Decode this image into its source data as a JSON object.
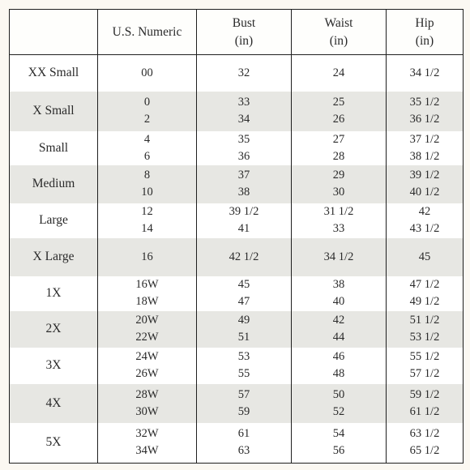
{
  "headers": {
    "size": "",
    "numeric": "U.S. Numeric",
    "bust": "Bust",
    "bust_unit": "(in)",
    "waist": "Waist",
    "waist_unit": "(in)",
    "hip": "Hip",
    "hip_unit": "(in)"
  },
  "rows": [
    {
      "size": "XX Small",
      "numeric": [
        "00"
      ],
      "bust": [
        "32"
      ],
      "waist": [
        "24"
      ],
      "hip": [
        "34 1/2"
      ]
    },
    {
      "size": "X Small",
      "numeric": [
        "0",
        "2"
      ],
      "bust": [
        "33",
        "34"
      ],
      "waist": [
        "25",
        "26"
      ],
      "hip": [
        "35 1/2",
        "36 1/2"
      ]
    },
    {
      "size": "Small",
      "numeric": [
        "4",
        "6"
      ],
      "bust": [
        "35",
        "36"
      ],
      "waist": [
        "27",
        "28"
      ],
      "hip": [
        "37 1/2",
        "38 1/2"
      ]
    },
    {
      "size": "Medium",
      "numeric": [
        "8",
        "10"
      ],
      "bust": [
        "37",
        "38"
      ],
      "waist": [
        "29",
        "30"
      ],
      "hip": [
        "39 1/2",
        "40 1/2"
      ]
    },
    {
      "size": "Large",
      "numeric": [
        "12",
        "14"
      ],
      "bust": [
        "39 1/2",
        "41"
      ],
      "waist": [
        "31 1/2",
        "33"
      ],
      "hip": [
        "42",
        "43 1/2"
      ]
    },
    {
      "size": "X Large",
      "numeric": [
        "16"
      ],
      "bust": [
        "42 1/2"
      ],
      "waist": [
        "34 1/2"
      ],
      "hip": [
        "45"
      ]
    },
    {
      "size": "1X",
      "numeric": [
        "16W",
        "18W"
      ],
      "bust": [
        "45",
        "47"
      ],
      "waist": [
        "38",
        "40"
      ],
      "hip": [
        "47 1/2",
        "49 1/2"
      ]
    },
    {
      "size": "2X",
      "numeric": [
        "20W",
        "22W"
      ],
      "bust": [
        "49",
        "51"
      ],
      "waist": [
        "42",
        "44"
      ],
      "hip": [
        "51 1/2",
        "53 1/2"
      ]
    },
    {
      "size": "3X",
      "numeric": [
        "24W",
        "26W"
      ],
      "bust": [
        "53",
        "55"
      ],
      "waist": [
        "46",
        "48"
      ],
      "hip": [
        "55 1/2",
        "57 1/2"
      ]
    },
    {
      "size": "4X",
      "numeric": [
        "28W",
        "30W"
      ],
      "bust": [
        "57",
        "59"
      ],
      "waist": [
        "50",
        "52"
      ],
      "hip": [
        "59 1/2",
        "61 1/2"
      ]
    },
    {
      "size": "5X",
      "numeric": [
        "32W",
        "34W"
      ],
      "bust": [
        "61",
        "63"
      ],
      "waist": [
        "54",
        "56"
      ],
      "hip": [
        "63 1/2",
        "65 1/2"
      ]
    }
  ]
}
